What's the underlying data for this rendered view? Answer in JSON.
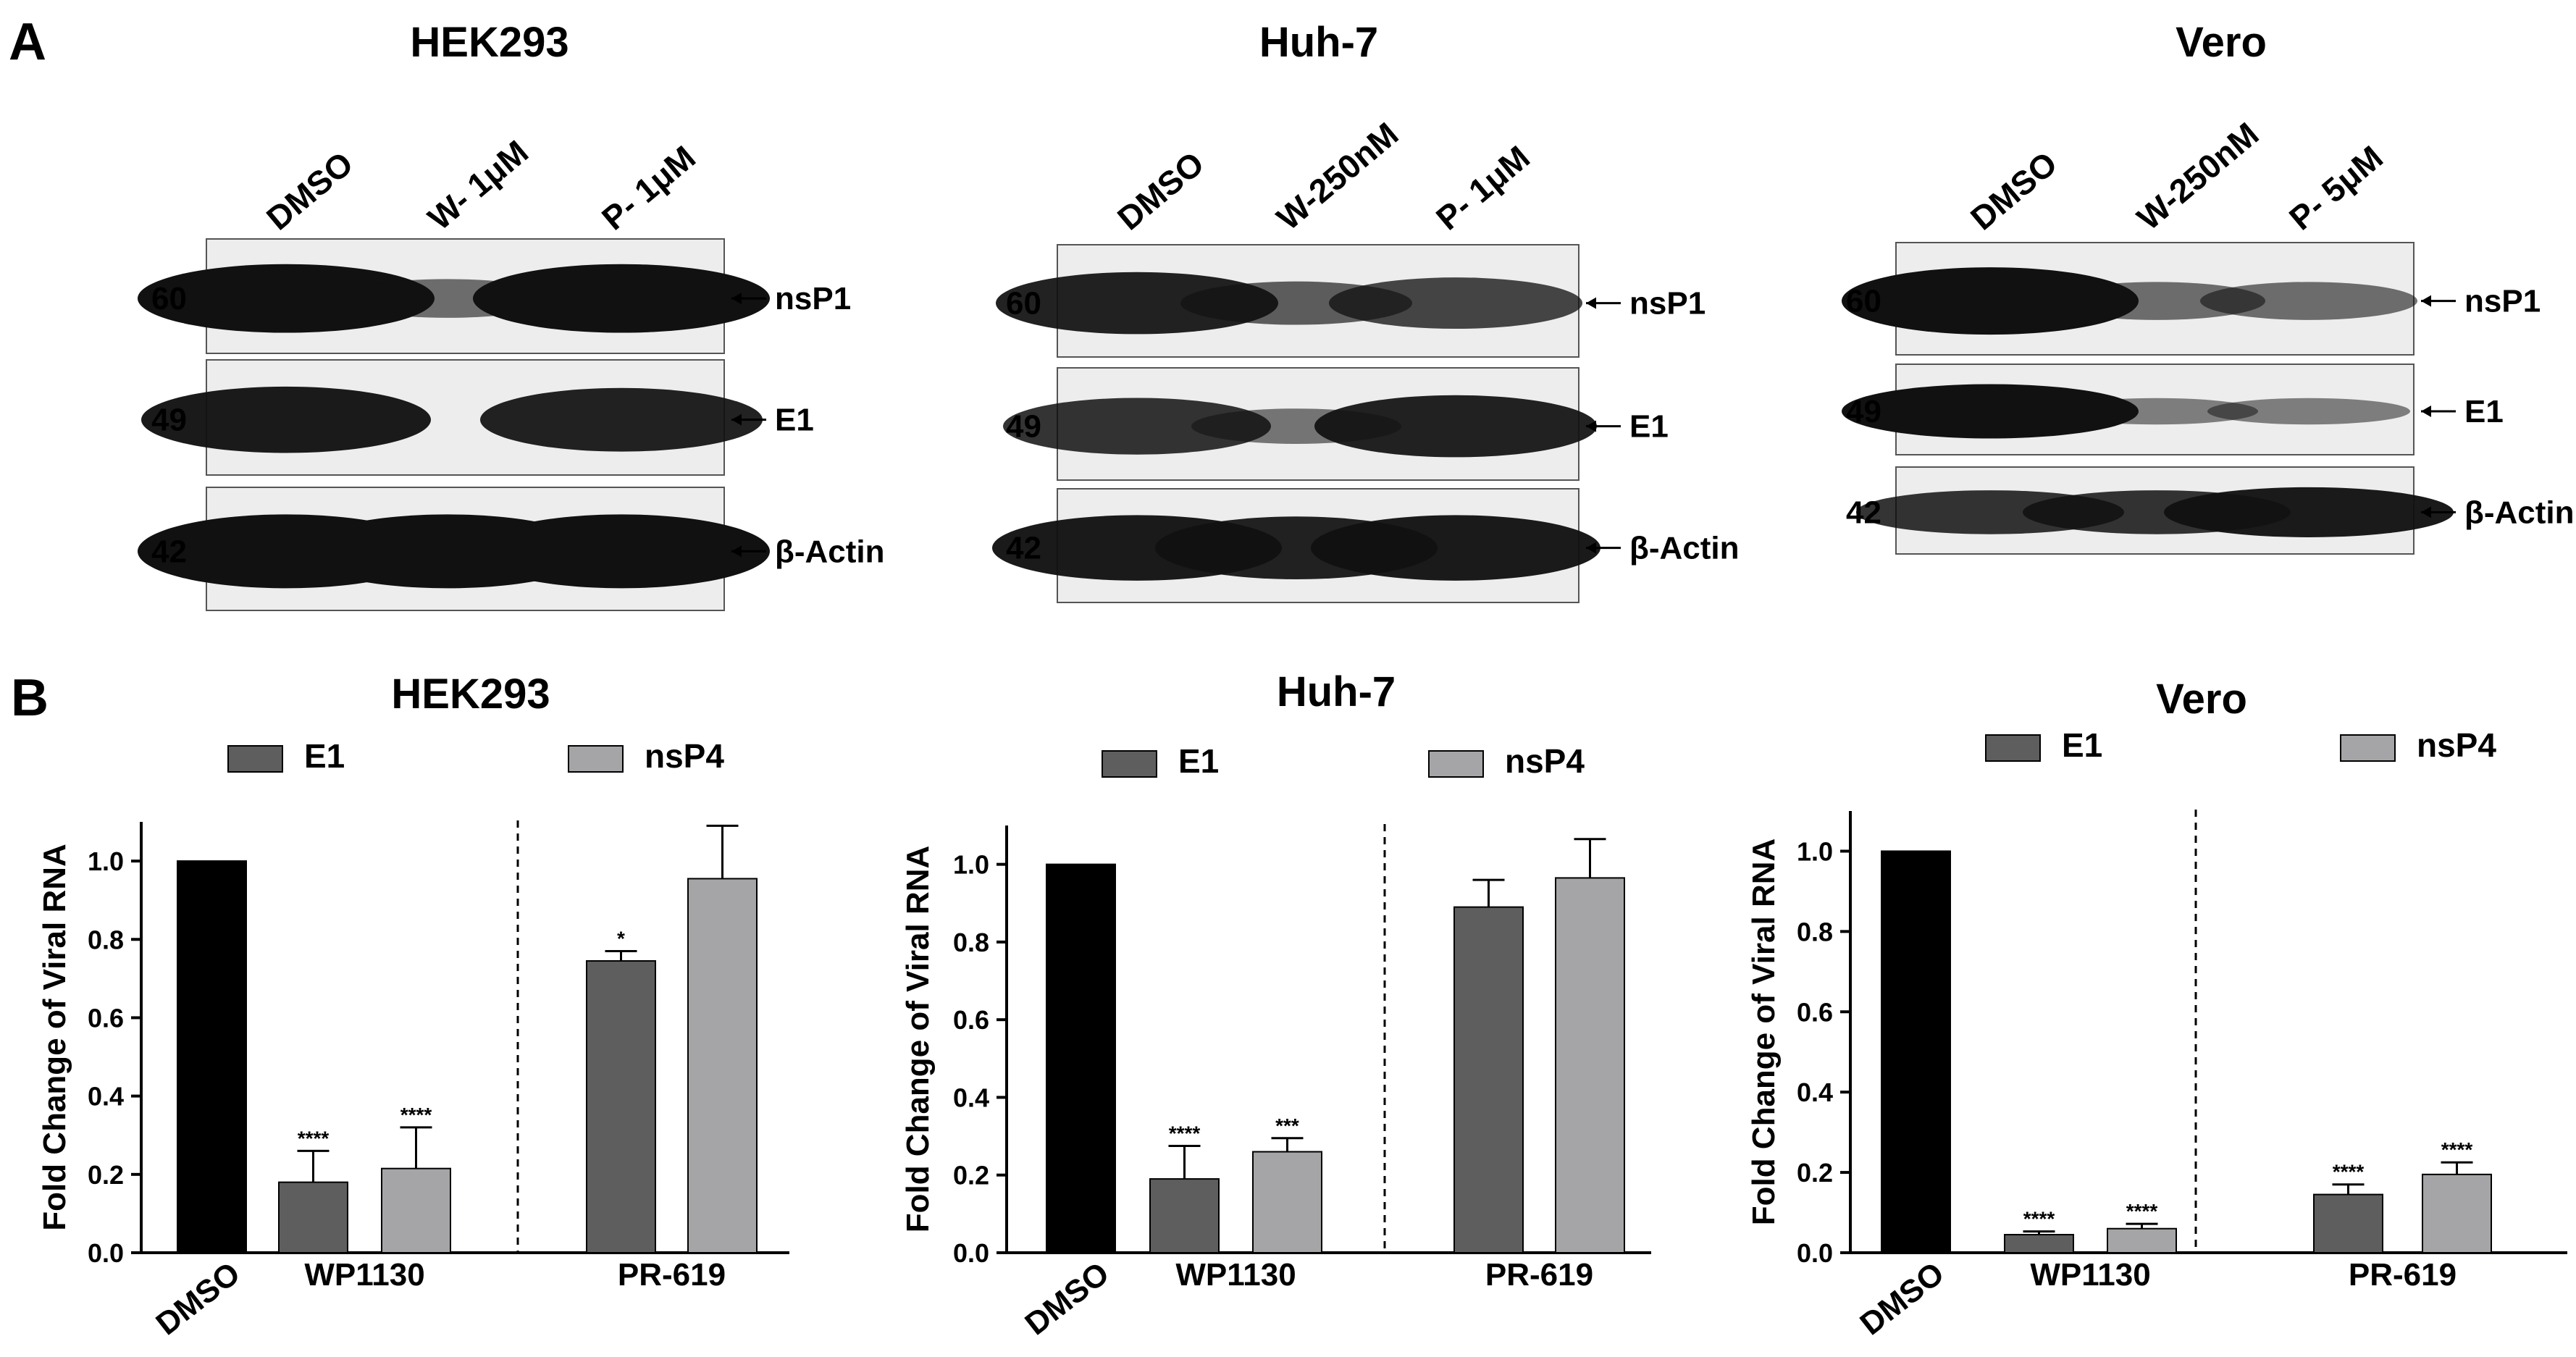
{
  "panels": {
    "a_label": "A",
    "b_label": "B"
  },
  "colors": {
    "e1": "#5e5e5e",
    "nsp4": "#a5a5a7",
    "dmso": "#000000",
    "blot_bg": "#ededed",
    "band": "#111111"
  },
  "blots": [
    {
      "cell_line": "HEK293",
      "lanes": [
        "DMSO",
        "W- 1μM",
        "P- 1μM"
      ],
      "rows": [
        {
          "mw": "60",
          "label": "nsP1",
          "intensity": [
            1.0,
            0.45,
            1.0
          ]
        },
        {
          "mw": "49",
          "label": "E1",
          "intensity": [
            0.95,
            0.0,
            0.9
          ]
        },
        {
          "mw": "42",
          "label": "β-Actin",
          "intensity": [
            1.0,
            1.0,
            1.0
          ]
        }
      ]
    },
    {
      "cell_line": "Huh-7",
      "lanes": [
        "DMSO",
        "W-250nM",
        "P- 1μM"
      ],
      "rows": [
        {
          "mw": "60",
          "label": "nsP1",
          "intensity": [
            0.9,
            0.55,
            0.7
          ]
        },
        {
          "mw": "49",
          "label": "E1",
          "intensity": [
            0.8,
            0.4,
            0.9
          ]
        },
        {
          "mw": "42",
          "label": "β-Actin",
          "intensity": [
            0.95,
            0.9,
            0.95
          ]
        }
      ]
    },
    {
      "cell_line": "Vero",
      "lanes": [
        "DMSO",
        "W-250nM",
        "P- 5μM"
      ],
      "rows": [
        {
          "mw": "60",
          "label": "nsP1",
          "intensity": [
            1.0,
            0.45,
            0.45
          ]
        },
        {
          "mw": "49",
          "label": "E1",
          "intensity": [
            1.0,
            0.35,
            0.35
          ]
        },
        {
          "mw": "42",
          "label": "β-Actin",
          "intensity": [
            0.8,
            0.8,
            0.95
          ]
        }
      ]
    }
  ],
  "chart_data": [
    {
      "type": "bar",
      "title": "HEK293",
      "ylabel": "Fold Change of Viral RNA",
      "ylim": [
        0,
        1.1
      ],
      "yticks": [
        "0.0",
        "0.2",
        "0.4",
        "0.6",
        "0.8",
        "1.0"
      ],
      "legend": [
        "E1",
        "nsP4"
      ],
      "legend_placement": "top",
      "categories": [
        "DMSO",
        "WP1130",
        "PR-619"
      ],
      "bars": [
        {
          "category": "DMSO",
          "series": "DMSO",
          "value": 1.0,
          "error": 0.0,
          "sig": ""
        },
        {
          "category": "WP1130",
          "series": "E1",
          "value": 0.18,
          "error": 0.08,
          "sig": "****"
        },
        {
          "category": "WP1130",
          "series": "nsP4",
          "value": 0.215,
          "error": 0.105,
          "sig": "****"
        },
        {
          "category": "PR-619",
          "series": "E1",
          "value": 0.745,
          "error": 0.025,
          "sig": "*"
        },
        {
          "category": "PR-619",
          "series": "nsP4",
          "value": 0.955,
          "error": 0.135,
          "sig": ""
        }
      ]
    },
    {
      "type": "bar",
      "title": "Huh-7",
      "ylabel": "Fold Change of Viral RNA",
      "ylim": [
        0,
        1.1
      ],
      "yticks": [
        "0.0",
        "0.2",
        "0.4",
        "0.6",
        "0.8",
        "1.0"
      ],
      "legend": [
        "E1",
        "nsP4"
      ],
      "legend_placement": "top",
      "categories": [
        "DMSO",
        "WP1130",
        "PR-619"
      ],
      "bars": [
        {
          "category": "DMSO",
          "series": "DMSO",
          "value": 1.0,
          "error": 0.0,
          "sig": ""
        },
        {
          "category": "WP1130",
          "series": "E1",
          "value": 0.19,
          "error": 0.085,
          "sig": "****"
        },
        {
          "category": "WP1130",
          "series": "nsP4",
          "value": 0.26,
          "error": 0.035,
          "sig": "***"
        },
        {
          "category": "PR-619",
          "series": "E1",
          "value": 0.89,
          "error": 0.07,
          "sig": ""
        },
        {
          "category": "PR-619",
          "series": "nsP4",
          "value": 0.965,
          "error": 0.1,
          "sig": ""
        }
      ]
    },
    {
      "type": "bar",
      "title": "Vero",
      "ylabel": "Fold Change of Viral RNA",
      "ylim": [
        0,
        1.1
      ],
      "yticks": [
        "0.0",
        "0.2",
        "0.4",
        "0.6",
        "0.8",
        "1.0"
      ],
      "legend": [
        "E1",
        "nsP4"
      ],
      "legend_placement": "top",
      "categories": [
        "DMSO",
        "WP1130",
        "PR-619"
      ],
      "bars": [
        {
          "category": "DMSO",
          "series": "DMSO",
          "value": 1.0,
          "error": 0.0,
          "sig": ""
        },
        {
          "category": "WP1130",
          "series": "E1",
          "value": 0.045,
          "error": 0.008,
          "sig": "****"
        },
        {
          "category": "WP1130",
          "series": "nsP4",
          "value": 0.06,
          "error": 0.012,
          "sig": "****"
        },
        {
          "category": "PR-619",
          "series": "E1",
          "value": 0.145,
          "error": 0.025,
          "sig": "****"
        },
        {
          "category": "PR-619",
          "series": "nsP4",
          "value": 0.195,
          "error": 0.03,
          "sig": "****"
        }
      ]
    }
  ]
}
